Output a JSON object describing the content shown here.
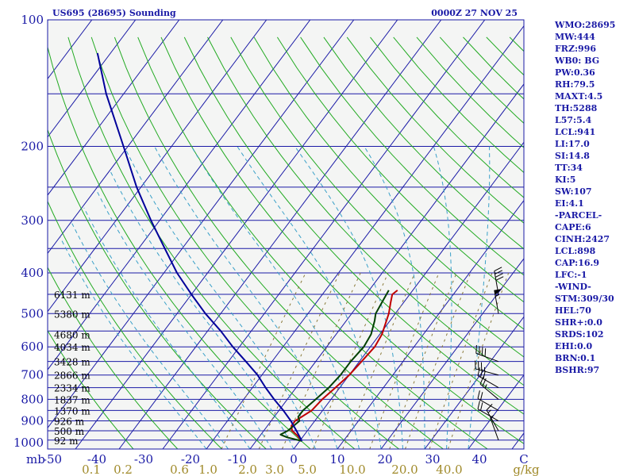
{
  "chart_data": {
    "type": "skew-t",
    "title_left": "US695 (28695) Sounding",
    "title_right": "0000Z 27 NOV 25",
    "pressure_axis_unit": "mb",
    "pressure_ticks": [
      100,
      200,
      300,
      400,
      500,
      600,
      700,
      800,
      900,
      1000
    ],
    "pressure_lines": [
      100,
      150,
      200,
      250,
      300,
      350,
      400,
      450,
      500,
      550,
      600,
      650,
      700,
      750,
      800,
      850,
      900,
      950,
      1000
    ],
    "temperature_ticks": [
      "-50",
      "-40",
      "-30",
      "-20",
      "-10",
      "0",
      "10",
      "20",
      "30",
      "40",
      "C"
    ],
    "mixing_ratio_labels": [
      "0.1",
      "0.2",
      "0.6",
      "1.0",
      "2.0",
      "3.0",
      "5.0",
      "10.0",
      "20.0",
      "40.0",
      "g/kg"
    ],
    "height_labels": [
      {
        "p": 450,
        "label": "6131 m"
      },
      {
        "p": 500,
        "label": "5380 m"
      },
      {
        "p": 560,
        "label": "4680 m"
      },
      {
        "p": 600,
        "label": "4034 m"
      },
      {
        "p": 650,
        "label": "3428 m"
      },
      {
        "p": 700,
        "label": "2866 m"
      },
      {
        "p": 750,
        "label": "2334 m"
      },
      {
        "p": 800,
        "label": "1837 m"
      },
      {
        "p": 850,
        "label": "1370 m"
      },
      {
        "p": 900,
        "label": "926 m"
      },
      {
        "p": 950,
        "label": "500 m"
      },
      {
        "p": 1000,
        "label": "92 m"
      }
    ],
    "series": [
      {
        "name": "temperature",
        "color": "#c00000",
        "points": [
          [
            1005,
            0.5
          ],
          [
            975,
            -1.5
          ],
          [
            950,
            -3.5
          ],
          [
            925,
            -4.5
          ],
          [
            900,
            -4.5
          ],
          [
            850,
            -2.5
          ],
          [
            800,
            -2.0
          ],
          [
            750,
            -1.0
          ],
          [
            700,
            0.0
          ],
          [
            650,
            0.5
          ],
          [
            600,
            1.0
          ],
          [
            560,
            0.5
          ],
          [
            500,
            -1.5
          ],
          [
            470,
            -3.0
          ],
          [
            450,
            -4.0
          ],
          [
            440,
            -3.5
          ]
        ]
      },
      {
        "name": "dewpoint",
        "color": "#004000",
        "points": [
          [
            1005,
            0.5
          ],
          [
            985,
            -3.5
          ],
          [
            970,
            -5.5
          ],
          [
            950,
            -4.5
          ],
          [
            900,
            -3.5
          ],
          [
            880,
            -4.5
          ],
          [
            850,
            -4.5
          ],
          [
            800,
            -3.5
          ],
          [
            750,
            -2.5
          ],
          [
            700,
            -2.0
          ],
          [
            650,
            -2.0
          ],
          [
            600,
            -1.5
          ],
          [
            560,
            -2.0
          ],
          [
            520,
            -3.5
          ],
          [
            500,
            -4.5
          ],
          [
            470,
            -5.0
          ],
          [
            440,
            -5.5
          ]
        ]
      },
      {
        "name": "parcel",
        "color": "#00009a",
        "points": [
          [
            1005,
            0.5
          ],
          [
            950,
            -2.5
          ],
          [
            900,
            -5.5
          ],
          [
            850,
            -9.0
          ],
          [
            800,
            -13.0
          ],
          [
            750,
            -17.0
          ],
          [
            700,
            -21.0
          ],
          [
            650,
            -26.0
          ],
          [
            600,
            -31.5
          ],
          [
            550,
            -37.0
          ],
          [
            500,
            -43.5
          ],
          [
            450,
            -50.0
          ],
          [
            400,
            -57.0
          ],
          [
            350,
            -64.0
          ],
          [
            300,
            -72.0
          ],
          [
            250,
            -81.0
          ],
          [
            200,
            -91.0
          ],
          [
            150,
            -104.0
          ],
          [
            120,
            -113.0
          ]
        ]
      }
    ],
    "indices": [
      "WMO:28695",
      "MW:444",
      "FRZ:996",
      "WB0: BG",
      "PW:0.36",
      "RH:79.5",
      "MAXT:4.5",
      "TH:5288",
      "L57:5.4",
      "LCL:941",
      "LI:17.0",
      "SI:14.8",
      "TT:34",
      "KI:5",
      "SW:107",
      "EI:4.1",
      "-PARCEL-",
      "CAPE:6",
      "CINH:2427",
      "LCL:898",
      "CAP:16.9",
      "LFC:-1",
      "-WIND-",
      "STM:309/30",
      "HEL:70",
      "SHR+:0.0",
      "SRDS:102",
      "EHI:0.0",
      "BRN:0.1",
      "BSHR:97"
    ],
    "winds": [
      {
        "p": 450,
        "dir": 350,
        "spd": 40
      },
      {
        "p": 500,
        "dir": 350,
        "spd": 55
      },
      {
        "p": 650,
        "dir": 290,
        "spd": 40
      },
      {
        "p": 700,
        "dir": 285,
        "spd": 35
      },
      {
        "p": 750,
        "dir": 300,
        "spd": 30
      },
      {
        "p": 800,
        "dir": 310,
        "spd": 25
      },
      {
        "p": 850,
        "dir": 300,
        "spd": 20
      },
      {
        "p": 900,
        "dir": 300,
        "spd": 20
      },
      {
        "p": 950,
        "dir": 330,
        "spd": 15
      },
      {
        "p": 1000,
        "dir": 340,
        "spd": 5
      }
    ],
    "colors": {
      "isobar": "#1a1aa6",
      "isotherm": "#1a1aa6",
      "dry_adiabat": "#22aa22",
      "moist_adiabat": "#3aa0c8",
      "mixing_ratio": "#8a7a3a",
      "background": "#f4f5f4"
    }
  }
}
